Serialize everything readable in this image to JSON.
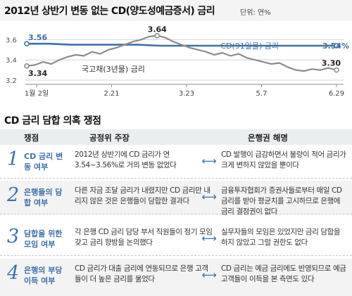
{
  "chart_data": {
    "type": "line",
    "title": "2012년 상반기 변동 없는 CD(양도성예금증서) 금리",
    "unit_label": "단위: 연%",
    "ylim": [
      3.2,
      3.7
    ],
    "y_ticks": [
      "3.6",
      "3.4",
      "3.2"
    ],
    "x_ticks": [
      "1월 2일",
      "2.21",
      "3.23",
      "5.7",
      "6.29"
    ],
    "series": [
      {
        "name": "CD(91일물) 금리",
        "color": "#3f70a7",
        "values": [
          3.56,
          3.56,
          3.55,
          3.55,
          3.55,
          3.55,
          3.54,
          3.54,
          3.54,
          3.54,
          3.54,
          3.54,
          3.54,
          3.54,
          3.54
        ]
      },
      {
        "name": "국고채(3년물) 금리",
        "color": "#8c8c8c",
        "values": [
          3.34,
          3.35,
          3.38,
          3.36,
          3.4,
          3.43,
          3.45,
          3.44,
          3.48,
          3.46,
          3.5,
          3.52,
          3.55,
          3.58,
          3.6,
          3.63,
          3.64,
          3.62,
          3.58,
          3.55,
          3.52,
          3.5,
          3.48,
          3.45,
          3.47,
          3.44,
          3.46,
          3.42,
          3.4,
          3.38,
          3.36,
          3.37,
          3.33,
          3.3,
          3.29,
          3.31,
          3.3,
          3.32,
          3.3
        ]
      }
    ],
    "labels": {
      "cd_start": "3.56",
      "cd_end": "3.54%",
      "bond_start": "3.34",
      "bond_peak": "3.64",
      "bond_end": "3.30"
    },
    "legend": {
      "cd": "CD(91일물) 금리",
      "bond": "국고채(3년물) 금리"
    }
  },
  "section": {
    "title": "CD 금리 담합 의혹 쟁점"
  },
  "table": {
    "headers": {
      "issue": "쟁점",
      "claim": "공정위 주장",
      "reply": "은행권 해명"
    },
    "arrow": "⟷",
    "rows": [
      {
        "num": "1",
        "issue": "CD 금리 변동 여부",
        "claim": "2012년 상반기에 CD 금리가 연 3.54~3.56%로 거의 변동 없었다",
        "reply": "CD 발행이 급감하면서 물량이 적어 금리가 크게 변하지 않았을 뿐이다"
      },
      {
        "num": "2",
        "issue": "은행들의 담합 여부",
        "claim": "다른 자금 조달 금리가 내렸지만 CD 금리만 내리지 않은 것은 은행들이 담합한 결과다",
        "reply": "금융투자협회가 증권사들로부터 매일 CD 금리를 받아 평균치를 고시하므로 은행에 금리 결정권이 없다"
      },
      {
        "num": "3",
        "issue": "담합을 위한 모임 여부",
        "claim": "각 은행 CD 금리 담당 부서 직원들이 정기 모임 갖고 금리 향방을 논의했다",
        "reply": "실무자들의 모임은 있었지만 금리 담합을 하지 않았고 그럴 권한도 없다"
      },
      {
        "num": "4",
        "issue": "은행의 부당 이득 여부",
        "claim": "CD 금리가 대출 금리에 연동되므로 은행 고객들이 더 높은 금리를 물었다",
        "reply": "CD 금리는 예금 금리에도 반영되므로 예금 고객들이 이득을 본 측면도 있다"
      }
    ]
  }
}
